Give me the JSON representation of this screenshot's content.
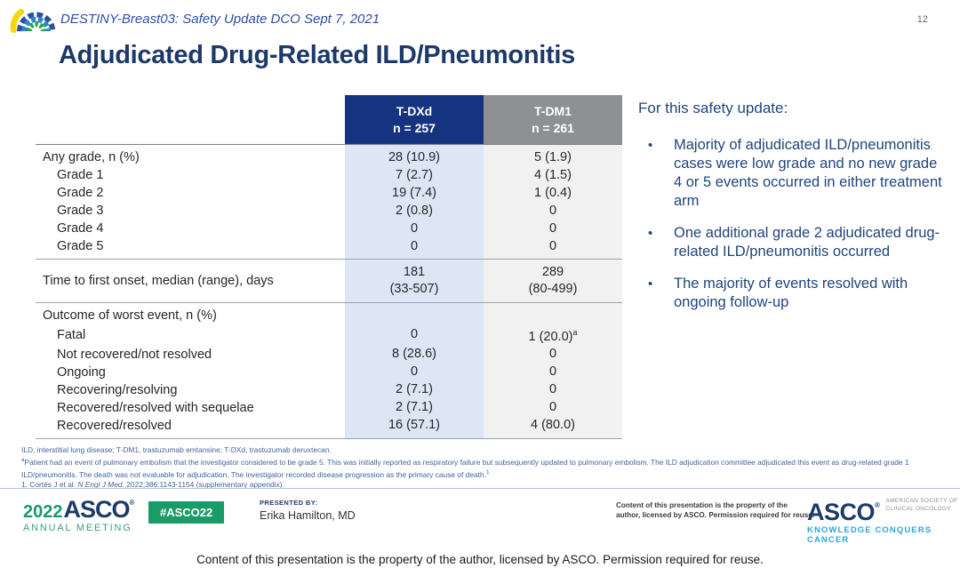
{
  "colors": {
    "header_navy": "#15337f",
    "header_gray": "#8f9091",
    "tdxd_column_shade": "#dde6f4",
    "tdm1_column_shade": "#f1f1f2",
    "title_navy": "#1c3969",
    "eyebrow_blue": "#2d4fa5",
    "asco_green": "#1a9c68",
    "knowledge_blue": "#2aa7de"
  },
  "icons": {
    "header_logo": "asco-fan-logo"
  },
  "header": {
    "eyebrow": "DESTINY-Breast03: Safety Update DCO Sept 7, 2021",
    "page_number": "12",
    "title": "Adjudicated Drug-Related ILD/Pneumonitis"
  },
  "table": {
    "columns": [
      {
        "name": "T-DXd",
        "n": "n = 257"
      },
      {
        "name": "T-DM1",
        "n": "n = 261"
      }
    ],
    "sections": [
      {
        "rows": [
          {
            "label": "Any grade, n (%)",
            "indent": false,
            "tdxd": "28 (10.9)",
            "tdm1": "5 (1.9)"
          },
          {
            "label": "Grade 1",
            "indent": true,
            "tdxd": "7 (2.7)",
            "tdm1": "4 (1.5)"
          },
          {
            "label": "Grade 2",
            "indent": true,
            "tdxd": "19 (7.4)",
            "tdm1": "1 (0.4)"
          },
          {
            "label": "Grade 3",
            "indent": true,
            "tdxd": "2 (0.8)",
            "tdm1": "0"
          },
          {
            "label": "Grade 4",
            "indent": true,
            "tdxd": "0",
            "tdm1": "0"
          },
          {
            "label": "Grade 5",
            "indent": true,
            "tdxd": "0",
            "tdm1": "0"
          }
        ]
      },
      {
        "rows": [
          {
            "label": "Time to first onset, median (range), days",
            "indent": false,
            "tdxd": [
              "181",
              "(33-507)"
            ],
            "tdm1": [
              "289",
              "(80-499)"
            ]
          }
        ]
      },
      {
        "rows": [
          {
            "label": "Outcome of worst event, n (%)",
            "indent": false,
            "tdxd": "",
            "tdm1": ""
          },
          {
            "label": "Fatal",
            "indent": true,
            "tdxd": "0",
            "tdm1": "1 (20.0)",
            "tdm1_sup": "a"
          },
          {
            "label": "Not recovered/not resolved",
            "indent": true,
            "tdxd": "8 (28.6)",
            "tdm1": "0"
          },
          {
            "label": "Ongoing",
            "indent": true,
            "tdxd": "0",
            "tdm1": "0"
          },
          {
            "label": "Recovering/resolving",
            "indent": true,
            "tdxd": "2 (7.1)",
            "tdm1": "0"
          },
          {
            "label": "Recovered/resolved with sequelae",
            "indent": true,
            "tdxd": "2 (7.1)",
            "tdm1": "0"
          },
          {
            "label": "Recovered/resolved",
            "indent": true,
            "tdxd": "16 (57.1)",
            "tdm1": "4 (80.0)"
          }
        ]
      }
    ]
  },
  "sidebar": {
    "heading": "For this safety update:",
    "bullet_char": "•",
    "bullets": [
      "Majority of adjudicated ILD/pneumonitis cases were low grade and no new grade 4 or 5 events occurred in either treatment arm",
      "One additional grade 2 adjudicated drug-related ILD/pneumonitis occurred",
      "The majority of events resolved with ongoing follow-up"
    ]
  },
  "footnotes": {
    "abbrev": "ILD, interstitial lung disease; T-DM1, trastuzumab emtansine; T-DXd, trastuzumab deruxtecan.",
    "note_sup": "a",
    "note_text": "Patient had an event of pulmonary embolism that the investigator considered to be grade 5. This was initially reported as respiratory failure but subsequently updated to pulmonary embolism. The ILD adjudication committee adjudicated this event as drug-related grade 1 ILD/pneumonitis.  The death was not evaluable for adjudication.  The investigator recorded disease progression as the primary cause of death.",
    "note_ref": "1",
    "ref_prefix": "1. Cortés J et al. ",
    "ref_journal": "N Engl J Med.",
    "ref_suffix": " 2022;386:1143-1154 (supplementary appendix)."
  },
  "footer": {
    "year": "2022",
    "asco": "ASCO",
    "reg": "®",
    "annual_meeting": "ANNUAL MEETING",
    "hashtag": "#ASCO22",
    "presented_by_label": "PRESENTED BY:",
    "presenter": "Erika Hamilton, MD",
    "property_line1": "Content of this presentation is the property of the",
    "property_line2": "author, licensed by ASCO. Permission required for reuse.",
    "society_line1": "AMERICAN SOCIETY OF",
    "society_line2": "CLINICAL ONCOLOGY",
    "tagline": "KNOWLEDGE CONQUERS CANCER"
  },
  "caption": "Content of this presentation is the property of the author, licensed by ASCO. Permission required for reuse."
}
